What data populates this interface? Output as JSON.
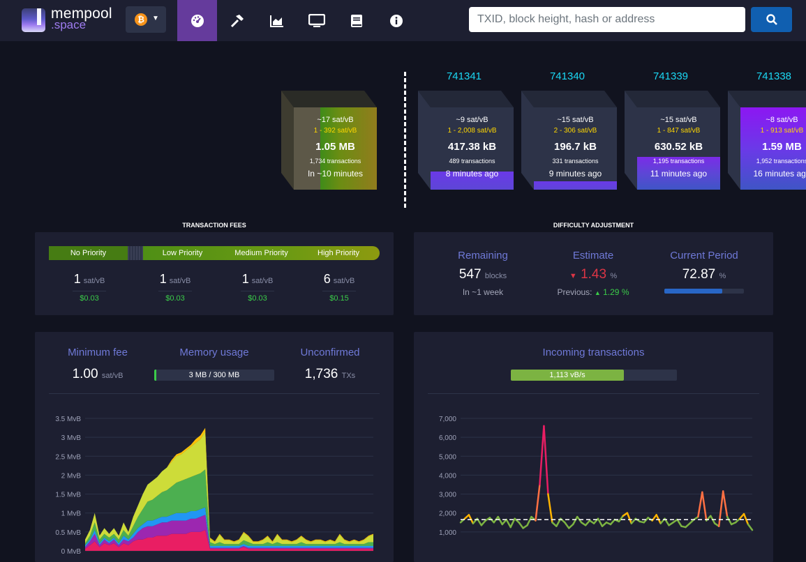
{
  "header": {
    "logo_line1": "mempool",
    "logo_line2": ".space",
    "network_icon": "bitcoin-icon",
    "nav": [
      "dashboard-icon",
      "hammer-icon",
      "chart-icon",
      "tv-icon",
      "book-icon",
      "info-icon"
    ],
    "search_placeholder": "TXID, block height, hash or address",
    "colors": {
      "active_nav": "#653b9c",
      "search_button": "#105fb0"
    }
  },
  "mempool_block": {
    "median_fee": "~17 sat/vB",
    "fee_range": "1 - 392 sat/vB",
    "size": "1.05 MB",
    "tx_count": "1,734 transactions",
    "eta": "In ~10 minutes"
  },
  "blocks": [
    {
      "height": "741341",
      "median_fee": "~9 sat/vB",
      "fee_range": "1 - 2,008 sat/vB",
      "size": "417.38 kB",
      "tx_count": "489 transactions",
      "time": "8 minutes ago"
    },
    {
      "height": "741340",
      "median_fee": "~15 sat/vB",
      "fee_range": "2 - 306 sat/vB",
      "size": "196.7 kB",
      "tx_count": "331 transactions",
      "time": "9 minutes ago"
    },
    {
      "height": "741339",
      "median_fee": "~15 sat/vB",
      "fee_range": "1 - 847 sat/vB",
      "size": "630.52 kB",
      "tx_count": "1,195 transactions",
      "time": "11 minutes ago"
    },
    {
      "height": "741338",
      "median_fee": "~8 sat/vB",
      "fee_range": "1 - 913 sat/vB",
      "size": "1.59 MB",
      "tx_count": "1,952 transactions",
      "time": "16 minutes ago"
    }
  ],
  "fees": {
    "title": "TRANSACTION FEES",
    "priorities": [
      {
        "label": "No Priority",
        "value": "1",
        "unit": "sat/vB",
        "usd": "$0.03"
      },
      {
        "label": "Low Priority",
        "value": "1",
        "unit": "sat/vB",
        "usd": "$0.03"
      },
      {
        "label": "Medium Priority",
        "value": "1",
        "unit": "sat/vB",
        "usd": "$0.03"
      },
      {
        "label": "High Priority",
        "value": "6",
        "unit": "sat/vB",
        "usd": "$0.15"
      }
    ]
  },
  "difficulty": {
    "title": "DIFFICULTY ADJUSTMENT",
    "remaining_label": "Remaining",
    "remaining_value": "547",
    "remaining_unit": "blocks",
    "remaining_sub": "In ~1 week",
    "estimate_label": "Estimate",
    "estimate_value": "1.43",
    "estimate_unit": "%",
    "previous_label": "Previous:",
    "previous_value": "1.29",
    "previous_unit": "%",
    "period_label": "Current Period",
    "period_value": "72.87",
    "period_unit": "%",
    "period_progress": 0.7287
  },
  "stats": {
    "min_fee_label": "Minimum fee",
    "min_fee_value": "1.00",
    "min_fee_unit": "sat/vB",
    "memory_label": "Memory usage",
    "memory_value": "3 MB / 300 MB",
    "memory_fraction": 0.01,
    "unconfirmed_label": "Unconfirmed",
    "unconfirmed_value": "1,736",
    "unconfirmed_unit": "TXs",
    "incoming_label": "Incoming transactions",
    "incoming_value": "1,113 vB/s",
    "incoming_fraction": 0.68
  },
  "chart_data": [
    {
      "type": "area",
      "yticks": [
        "0 MvB",
        "0.5 MvB",
        "1 MvB",
        "1.5 MvB",
        "2 MvB",
        "2.5 MvB",
        "3 MvB",
        "3.5 MvB"
      ],
      "ylim": [
        0,
        3.5
      ],
      "grid": true,
      "x": [
        0,
        1,
        2,
        3,
        4,
        5,
        6,
        7,
        8,
        9,
        10,
        11,
        12,
        13,
        14,
        15,
        16,
        17,
        18,
        19,
        20,
        21,
        22,
        23,
        24,
        25,
        26,
        27,
        28,
        29,
        30,
        31,
        32,
        33,
        34,
        35,
        36,
        37,
        38,
        39,
        40,
        41,
        42,
        43,
        44,
        45,
        46,
        47,
        48,
        49,
        50,
        51,
        52,
        53,
        54,
        55,
        56,
        57,
        58,
        59,
        60
      ],
      "series": [
        {
          "color": "#e91e63",
          "values": [
            0.05,
            0.15,
            0.25,
            0.1,
            0.2,
            0.15,
            0.2,
            0.1,
            0.2,
            0.15,
            0.25,
            0.3,
            0.3,
            0.35,
            0.35,
            0.4,
            0.4,
            0.4,
            0.45,
            0.45,
            0.45,
            0.45,
            0.5,
            0.5,
            0.5,
            0.55,
            0.05,
            0.05,
            0.05,
            0.05,
            0.05,
            0.05,
            0.05,
            0.1,
            0.05,
            0.05,
            0.05,
            0.05,
            0.05,
            0.05,
            0.05,
            0.05,
            0.05,
            0.05,
            0.05,
            0.05,
            0.05,
            0.05,
            0.05,
            0.05,
            0.05,
            0.05,
            0.05,
            0.05,
            0.05,
            0.05,
            0.05,
            0.05,
            0.05,
            0.05,
            0.05
          ]
        },
        {
          "color": "#9c27b0",
          "values": [
            0.05,
            0.1,
            0.2,
            0.05,
            0.1,
            0.05,
            0.1,
            0.05,
            0.1,
            0.1,
            0.1,
            0.2,
            0.3,
            0.3,
            0.3,
            0.3,
            0.35,
            0.35,
            0.35,
            0.35,
            0.35,
            0.35,
            0.35,
            0.35,
            0.4,
            0.4,
            0.03,
            0.03,
            0.03,
            0.03,
            0.03,
            0.03,
            0.03,
            0.03,
            0.03,
            0.03,
            0.03,
            0.03,
            0.03,
            0.03,
            0.03,
            0.03,
            0.03,
            0.03,
            0.03,
            0.03,
            0.03,
            0.03,
            0.03,
            0.03,
            0.03,
            0.03,
            0.03,
            0.03,
            0.03,
            0.03,
            0.03,
            0.03,
            0.03,
            0.03,
            0.03
          ]
        },
        {
          "color": "#2196f3",
          "values": [
            0.05,
            0.05,
            0.1,
            0.05,
            0.05,
            0.05,
            0.05,
            0.05,
            0.1,
            0.05,
            0.1,
            0.1,
            0.1,
            0.15,
            0.15,
            0.15,
            0.15,
            0.15,
            0.15,
            0.2,
            0.2,
            0.2,
            0.2,
            0.2,
            0.2,
            0.2,
            0.05,
            0.05,
            0.05,
            0.05,
            0.05,
            0.05,
            0.05,
            0.05,
            0.05,
            0.05,
            0.05,
            0.05,
            0.05,
            0.05,
            0.05,
            0.05,
            0.05,
            0.05,
            0.05,
            0.05,
            0.05,
            0.05,
            0.05,
            0.05,
            0.05,
            0.05,
            0.05,
            0.05,
            0.05,
            0.05,
            0.05,
            0.05,
            0.05,
            0.05,
            0.05
          ]
        },
        {
          "color": "#4caf50",
          "values": [
            0.05,
            0.1,
            0.2,
            0.1,
            0.1,
            0.1,
            0.1,
            0.1,
            0.15,
            0.1,
            0.2,
            0.3,
            0.4,
            0.5,
            0.55,
            0.6,
            0.65,
            0.7,
            0.75,
            0.8,
            0.85,
            0.9,
            0.9,
            0.95,
            0.95,
            1.0,
            0.1,
            0.05,
            0.1,
            0.05,
            0.05,
            0.05,
            0.05,
            0.1,
            0.1,
            0.05,
            0.05,
            0.05,
            0.1,
            0.05,
            0.1,
            0.05,
            0.05,
            0.05,
            0.05,
            0.1,
            0.05,
            0.05,
            0.05,
            0.05,
            0.05,
            0.05,
            0.05,
            0.1,
            0.05,
            0.05,
            0.05,
            0.05,
            0.05,
            0.1,
            0.1
          ]
        },
        {
          "color": "#cddc39",
          "values": [
            0.1,
            0.15,
            0.25,
            0.1,
            0.15,
            0.1,
            0.15,
            0.1,
            0.2,
            0.1,
            0.25,
            0.3,
            0.4,
            0.45,
            0.5,
            0.5,
            0.55,
            0.6,
            0.65,
            0.7,
            0.7,
            0.75,
            0.8,
            0.85,
            0.9,
            1.0,
            0.1,
            0.05,
            0.2,
            0.1,
            0.1,
            0.05,
            0.1,
            0.2,
            0.15,
            0.05,
            0.05,
            0.1,
            0.15,
            0.05,
            0.2,
            0.1,
            0.1,
            0.05,
            0.1,
            0.15,
            0.1,
            0.05,
            0.1,
            0.1,
            0.05,
            0.1,
            0.05,
            0.2,
            0.1,
            0.05,
            0.1,
            0.05,
            0.1,
            0.15,
            0.2
          ]
        },
        {
          "color": "#ffc107",
          "values": [
            0.0,
            0.0,
            0.0,
            0.0,
            0.0,
            0.0,
            0.0,
            0.0,
            0.0,
            0.0,
            0.0,
            0.0,
            0.0,
            0.0,
            0.0,
            0.0,
            0.0,
            0.0,
            0.05,
            0.05,
            0.05,
            0.05,
            0.05,
            0.1,
            0.1,
            0.1,
            0.02,
            0.02,
            0.02,
            0.02,
            0.02,
            0.02,
            0.02,
            0.02,
            0.02,
            0.02,
            0.02,
            0.02,
            0.02,
            0.02,
            0.02,
            0.02,
            0.02,
            0.02,
            0.02,
            0.02,
            0.02,
            0.02,
            0.02,
            0.02,
            0.02,
            0.02,
            0.02,
            0.02,
            0.02,
            0.02,
            0.02,
            0.02,
            0.02,
            0.02,
            0.02
          ]
        }
      ]
    },
    {
      "type": "line",
      "yticks": [
        "1,000",
        "2,000",
        "3,000",
        "4,000",
        "5,000",
        "6,000",
        "7,000"
      ],
      "ylim": [
        0,
        7000
      ],
      "grid": true,
      "reference_line": 1650,
      "x": [
        0,
        1,
        2,
        3,
        4,
        5,
        6,
        7,
        8,
        9,
        10,
        11,
        12,
        13,
        14,
        15,
        16,
        17,
        18,
        19,
        20,
        21,
        22,
        23,
        24,
        25,
        26,
        27,
        28,
        29,
        30,
        31,
        32,
        33,
        34,
        35,
        36,
        37,
        38,
        39,
        40,
        41,
        42,
        43,
        44,
        45,
        46,
        47,
        48,
        49,
        50,
        51,
        52,
        53,
        54,
        55,
        56,
        57,
        58,
        59,
        60,
        61,
        62,
        63,
        64,
        65,
        66,
        67,
        68,
        69,
        70
      ],
      "series": [
        {
          "values": [
            1500,
            1700,
            1900,
            1450,
            1700,
            1350,
            1600,
            1750,
            1500,
            1800,
            1400,
            1650,
            1250,
            1700,
            1500,
            1200,
            1350,
            1800,
            1600,
            3500,
            6600,
            3000,
            1500,
            1300,
            1700,
            1500,
            1200,
            1400,
            1800,
            1500,
            1350,
            1600,
            1450,
            1700,
            1300,
            1500,
            1400,
            1650,
            1550,
            1850,
            2000,
            1450,
            1700,
            1550,
            1500,
            1750,
            1600,
            1900,
            1450,
            1700,
            1350,
            1500,
            1650,
            1300,
            1250,
            1450,
            1650,
            1800,
            3100,
            1600,
            1850,
            1450,
            1300,
            3150,
            1800,
            1400,
            1500,
            1700,
            1950,
            1400,
            1100
          ]
        }
      ]
    }
  ]
}
